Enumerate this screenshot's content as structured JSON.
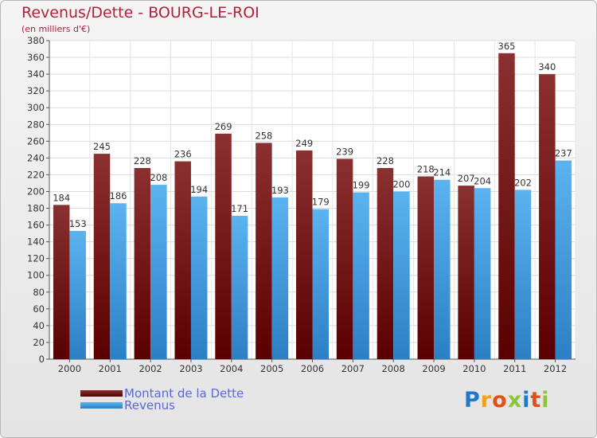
{
  "title": "Revenus/Dette - BOURG-LE-ROI",
  "subtitle": "(en milliers d'€)",
  "colors": {
    "debt_top": "#8b3030",
    "debt_bottom": "#5a0000",
    "revenue_top": "#5bb3f0",
    "revenue_bottom": "#2c7fc4",
    "title": "#b3203b",
    "legend_text": "#5a68d8"
  },
  "legend": {
    "debt_label": "Montant de la Dette",
    "revenue_label": "Revenus"
  },
  "logo": {
    "letters": [
      "P",
      "r",
      "o",
      "x",
      "i",
      "t",
      "i"
    ],
    "colors": [
      "#1f78c8",
      "#f0a020",
      "#e05018",
      "#8cc43c",
      "#1f78c8",
      "#e05018",
      "#8cc43c"
    ]
  },
  "chart_data": {
    "type": "bar",
    "title": "Revenus/Dette - BOURG-LE-ROI",
    "ylabel": "(en milliers d'€)",
    "xlabel": "",
    "categories": [
      "2000",
      "2001",
      "2002",
      "2003",
      "2004",
      "2005",
      "2006",
      "2007",
      "2008",
      "2009",
      "2010",
      "2011",
      "2012"
    ],
    "series": [
      {
        "name": "Montant de la Dette",
        "values": [
          184,
          245,
          228,
          236,
          269,
          258,
          249,
          239,
          228,
          218,
          207,
          365,
          340
        ]
      },
      {
        "name": "Revenus",
        "values": [
          153,
          186,
          208,
          194,
          171,
          193,
          179,
          199,
          200,
          214,
          204,
          202,
          237
        ]
      }
    ],
    "ylim": [
      0,
      380
    ],
    "ytick_step": 20,
    "grid": true,
    "legend_position": "bottom-left"
  }
}
